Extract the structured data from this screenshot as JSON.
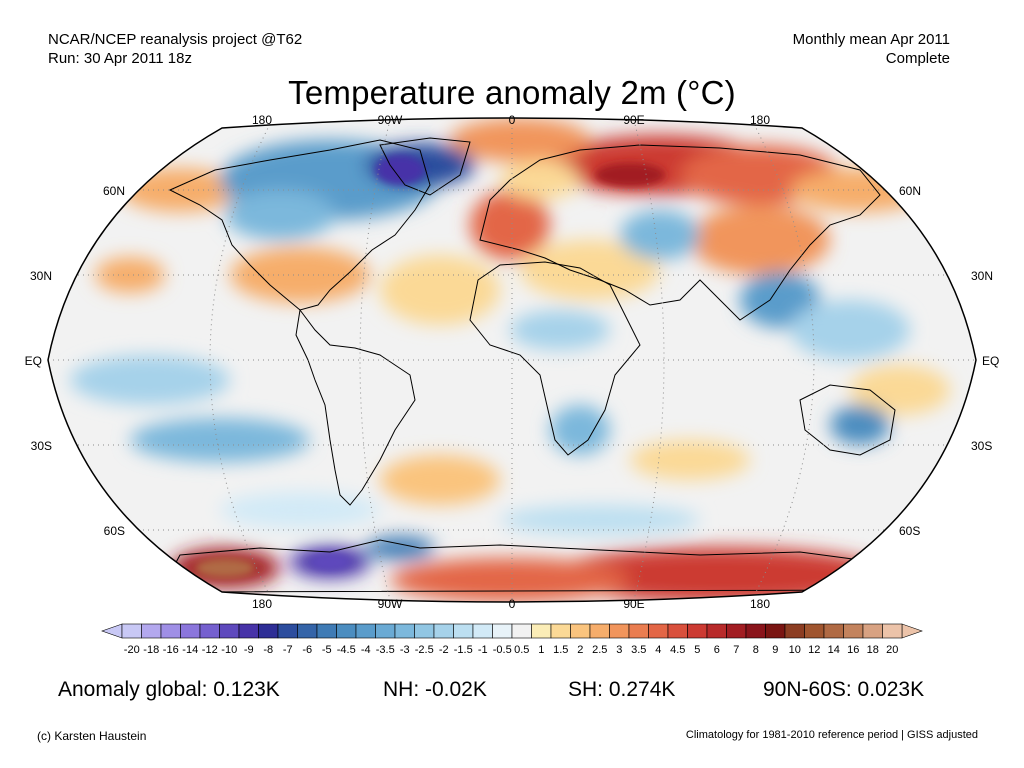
{
  "header": {
    "left_line1": "NCAR/NCEP reanalysis project @T62",
    "left_line2": "Run: 30 Apr 2011 18z",
    "right_line1": "Monthly mean Apr 2011",
    "right_line2": "Complete"
  },
  "title": "Temperature anomaly 2m (°C)",
  "map": {
    "projection": "Robinson",
    "lon_labels_top": [
      "180",
      "90W",
      "0",
      "90E",
      "180"
    ],
    "lon_labels_bottom": [
      "180",
      "90W",
      "0",
      "90E",
      "180"
    ],
    "lat_labels": [
      "60N",
      "30N",
      "EQ",
      "30S",
      "60S"
    ],
    "colors": {
      "ocean_neutral": "#f2f2f2",
      "land_outline": "#000000"
    }
  },
  "colorbar": {
    "labels": [
      "-20",
      "-18",
      "-16",
      "-14",
      "-12",
      "-10",
      "-9",
      "-8",
      "-7",
      "-6",
      "-5",
      "-4.5",
      "-4",
      "-3.5",
      "-3",
      "-2.5",
      "-2",
      "-1.5",
      "-1",
      "-0.5",
      "0.5",
      "1",
      "1.5",
      "2",
      "2.5",
      "3",
      "3.5",
      "4",
      "4.5",
      "5",
      "6",
      "7",
      "8",
      "9",
      "10",
      "12",
      "14",
      "16",
      "18",
      "20"
    ],
    "colors": [
      "#c8c8f5",
      "#b3a8ee",
      "#9f8fe6",
      "#8b76dc",
      "#7560cf",
      "#5e49bd",
      "#4733a8",
      "#2e2e96",
      "#2c4d9e",
      "#3464a8",
      "#3f7bb5",
      "#4b8dc0",
      "#5a9ccb",
      "#6aaad4",
      "#7cb8dc",
      "#91c6e3",
      "#a6d2ea",
      "#bcdff1",
      "#d2eaf7",
      "#e8f3f9",
      "#f2f2f2",
      "#fbedb7",
      "#fbd996",
      "#fac47e",
      "#f6ad6b",
      "#f1955c",
      "#ea7d50",
      "#e36646",
      "#d9503c",
      "#cc3a32",
      "#b82a2a",
      "#a21d22",
      "#8a141b",
      "#7a1512",
      "#8c3d22",
      "#a0552f",
      "#b06a44",
      "#c3835d",
      "#d8a282",
      "#ecc3a9"
    ]
  },
  "stats": {
    "global": "Anomaly global: 0.123K",
    "nh": "NH: -0.02K",
    "sh": "SH: 0.274K",
    "arctic": "90N-60S: 0.023K"
  },
  "footer": {
    "left": "(c) Karsten Haustein",
    "right": "Climatology for 1981-2010 reference period | GISS adjusted"
  }
}
